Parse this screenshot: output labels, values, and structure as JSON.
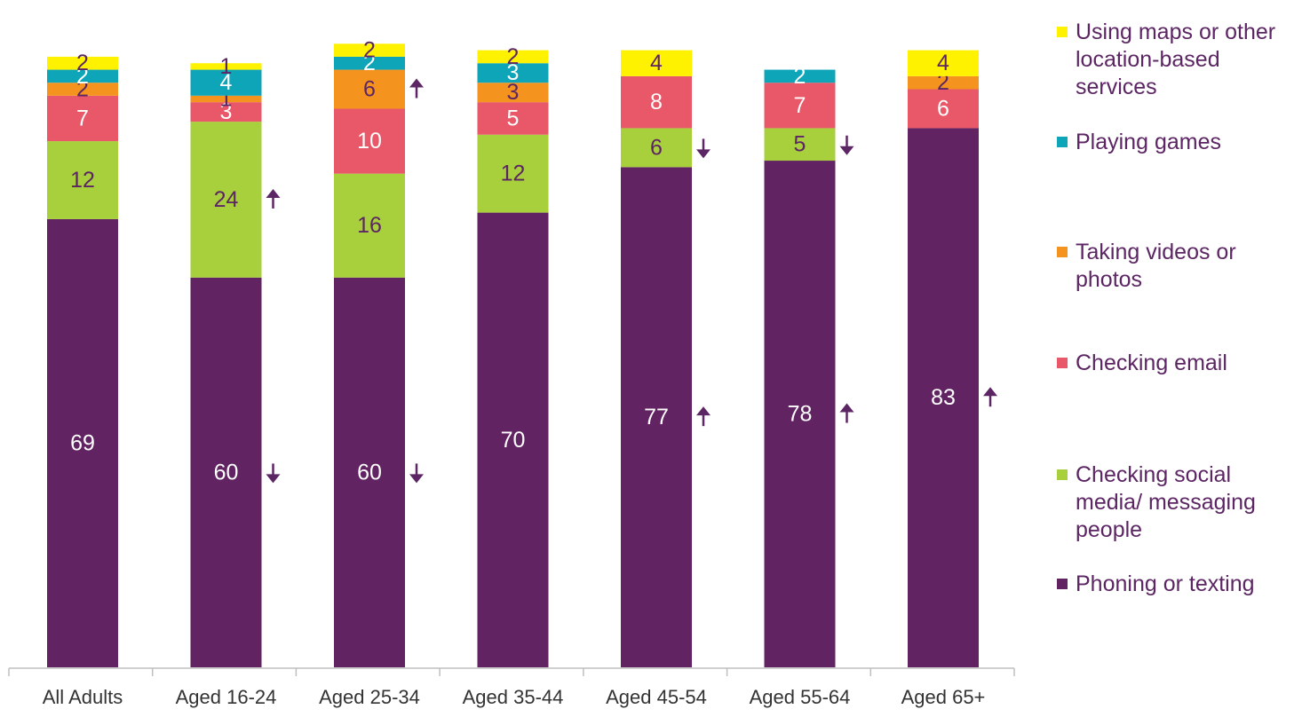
{
  "chart_data": {
    "type": "bar",
    "stacked": true,
    "orientation": "vertical",
    "categories": [
      "All Adults",
      "Aged 16-24",
      "Aged 25-34",
      "Aged 35-44",
      "Aged 45-54",
      "Aged 55-64",
      "Aged 65+"
    ],
    "series": [
      {
        "name": "Phoning or texting",
        "color": "#612361",
        "label_color": "#ffffff",
        "values": [
          69,
          60,
          60,
          70,
          77,
          78,
          83
        ]
      },
      {
        "name": "Checking social media/ messaging people",
        "color": "#a8cf3c",
        "label_color": "#5c2563",
        "values": [
          12,
          24,
          16,
          12,
          6,
          5,
          0
        ]
      },
      {
        "name": "Checking email",
        "color": "#e85868",
        "label_color": "#ffffff",
        "values": [
          7,
          3,
          10,
          5,
          8,
          7,
          6
        ]
      },
      {
        "name": "Taking videos or photos",
        "color": "#f5931f",
        "label_color": "#5c2563",
        "values": [
          2,
          1,
          6,
          3,
          0,
          0,
          2
        ]
      },
      {
        "name": "Playing games",
        "color": "#0fa5b8",
        "label_color": "#ffffff",
        "values": [
          2,
          4,
          2,
          3,
          0,
          2,
          0
        ]
      },
      {
        "name": "Using maps or other location-based services",
        "color": "#fff200",
        "label_color": "#5c2563",
        "values": [
          2,
          1,
          2,
          2,
          4,
          0,
          4
        ]
      }
    ],
    "significance_markers": [
      {
        "category": "Aged 16-24",
        "series": "Checking social media/ messaging people",
        "direction": "up"
      },
      {
        "category": "Aged 16-24",
        "series": "Phoning or texting",
        "direction": "down"
      },
      {
        "category": "Aged 25-34",
        "series": "Taking videos or photos",
        "direction": "up"
      },
      {
        "category": "Aged 25-34",
        "series": "Phoning or texting",
        "direction": "down"
      },
      {
        "category": "Aged 45-54",
        "series": "Checking social media/ messaging people",
        "direction": "down"
      },
      {
        "category": "Aged 45-54",
        "series": "Phoning or texting",
        "direction": "up"
      },
      {
        "category": "Aged 55-64",
        "series": "Checking social media/ messaging people",
        "direction": "down"
      },
      {
        "category": "Aged 55-64",
        "series": "Phoning or texting",
        "direction": "up"
      },
      {
        "category": "Aged 65+",
        "series": "Phoning or texting",
        "direction": "up"
      }
    ],
    "legend": {
      "placement": "right",
      "items": [
        {
          "series": "Using maps or other location-based services",
          "lines": [
            "Using maps or other",
            "location-based",
            "services"
          ]
        },
        {
          "series": "Playing games",
          "lines": [
            "Playing games"
          ]
        },
        {
          "series": "Taking videos or photos",
          "lines": [
            "Taking videos or",
            "photos"
          ]
        },
        {
          "series": "Checking email",
          "lines": [
            "Checking email"
          ]
        },
        {
          "series": "Checking social media/ messaging people",
          "lines": [
            "Checking social",
            "media/ messaging",
            "people"
          ]
        },
        {
          "series": "Phoning or texting",
          "lines": [
            "Phoning or texting"
          ]
        }
      ]
    },
    "arrow_color": "#5c2563",
    "axis_color": "#bfbfbf",
    "ylim": [
      0,
      100
    ],
    "grid": false,
    "title": "",
    "xlabel": "",
    "ylabel": ""
  }
}
